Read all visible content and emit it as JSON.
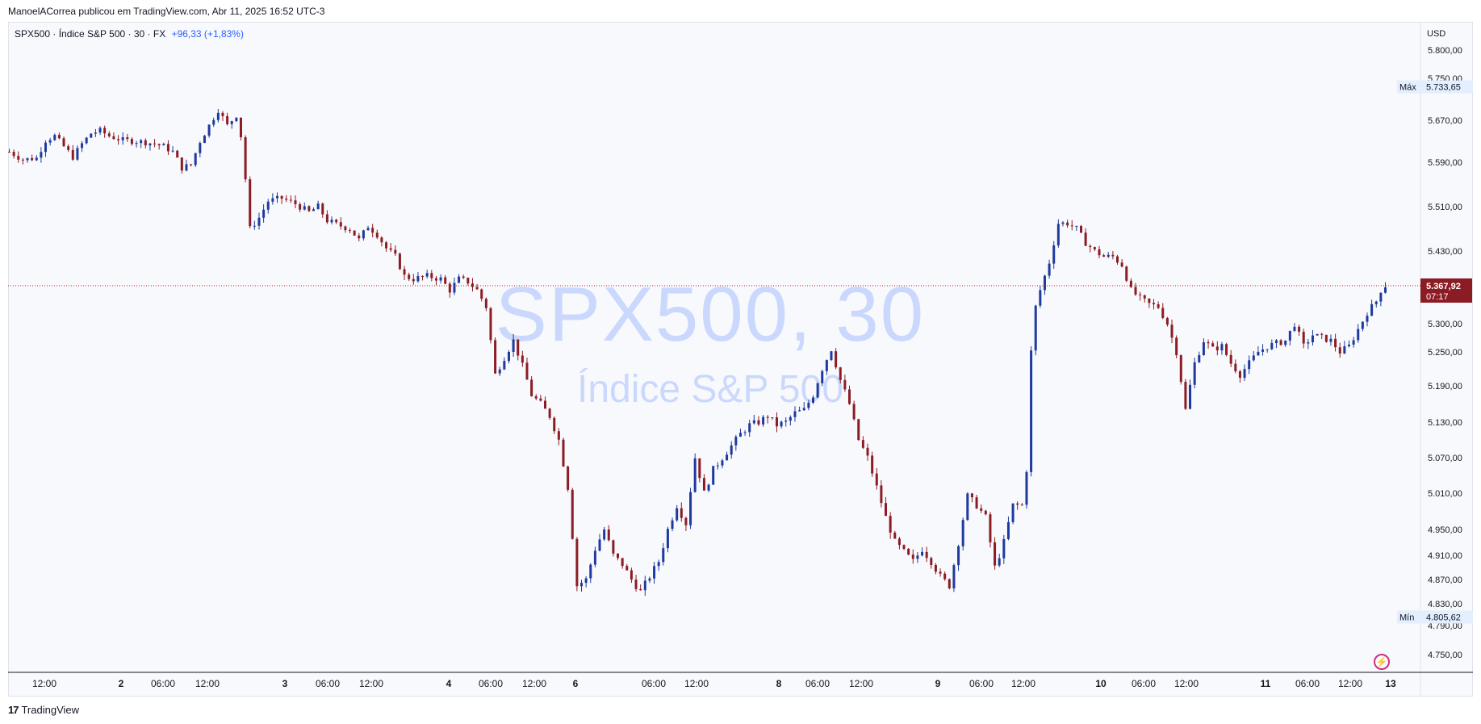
{
  "header": {
    "publisher_line": "ManoelACorrea publicou em TradingView.com, Abr 11, 2025 16:52 UTC-3"
  },
  "legend": {
    "symbol_line": "SPX500 · Índice S&P 500 · 30 · FX",
    "change": "+96,33 (+1,83%)"
  },
  "watermark": {
    "main": "SPX500, 30",
    "sub": "Índice S&P 500"
  },
  "footer": {
    "brand": "TradingView",
    "logo_text": "17"
  },
  "currency_label": "USD",
  "icons": {
    "alert": "lightning-icon"
  },
  "colors": {
    "up": "#1e3a9e",
    "down": "#8c1c24",
    "price_line": "#b71c1c",
    "max_min_bg": "#e3eefe"
  },
  "chart_data": {
    "type": "candlestick",
    "timeframe": "30",
    "y_ticks": [
      "5.800,00",
      "5.750,00",
      "5.670,00",
      "5.590,00",
      "5.510,00",
      "5.430,00",
      "5.300,00",
      "5.250,00",
      "5.190,00",
      "5.130,00",
      "5.070,00",
      "5.010,00",
      "4.950,00",
      "4.910,00",
      "4.870,00",
      "4.830,00",
      "4.790,00",
      "4.750,00"
    ],
    "x_ticks": [
      "12:00",
      "2",
      "06:00",
      "12:00",
      "3",
      "06:00",
      "12:00",
      "4",
      "06:00",
      "12:00",
      "6",
      "06:00",
      "12:00",
      "8",
      "06:00",
      "12:00",
      "9",
      "06:00",
      "12:00",
      "10",
      "06:00",
      "12:00",
      "11",
      "06:00",
      "12:00",
      "13"
    ],
    "max": {
      "label": "Máx",
      "value": "5.733,65"
    },
    "min": {
      "label": "Mín",
      "value": "4.805,62"
    },
    "last_price": {
      "value": "5.367,92",
      "countdown": "07:17"
    },
    "price_path": [
      [
        0,
        5610
      ],
      [
        3,
        5595
      ],
      [
        6,
        5598
      ],
      [
        8,
        5632
      ],
      [
        10,
        5640
      ],
      [
        12,
        5620
      ],
      [
        14,
        5600
      ],
      [
        16,
        5625
      ],
      [
        18,
        5645
      ],
      [
        20,
        5650
      ],
      [
        22,
        5640
      ],
      [
        25,
        5632
      ],
      [
        28,
        5630
      ],
      [
        30,
        5628
      ],
      [
        32,
        5625
      ],
      [
        34,
        5620
      ],
      [
        36,
        5610
      ],
      [
        38,
        5580
      ],
      [
        40,
        5585
      ],
      [
        42,
        5630
      ],
      [
        44,
        5660
      ],
      [
        46,
        5690
      ],
      [
        48,
        5660
      ],
      [
        50,
        5680
      ],
      [
        51,
        5640
      ],
      [
        52,
        5560
      ],
      [
        53,
        5470
      ],
      [
        55,
        5490
      ],
      [
        57,
        5520
      ],
      [
        60,
        5525
      ],
      [
        63,
        5515
      ],
      [
        66,
        5500
      ],
      [
        68,
        5510
      ],
      [
        70,
        5485
      ],
      [
        72,
        5478
      ],
      [
        75,
        5470
      ],
      [
        77,
        5450
      ],
      [
        79,
        5475
      ],
      [
        81,
        5460
      ],
      [
        83,
        5435
      ],
      [
        85,
        5420
      ],
      [
        87,
        5385
      ],
      [
        89,
        5380
      ],
      [
        92,
        5385
      ],
      [
        95,
        5380
      ],
      [
        97,
        5360
      ],
      [
        99,
        5380
      ],
      [
        101,
        5375
      ],
      [
        103,
        5360
      ],
      [
        105,
        5330
      ],
      [
        107,
        5210
      ],
      [
        109,
        5240
      ],
      [
        111,
        5270
      ],
      [
        113,
        5225
      ],
      [
        115,
        5175
      ],
      [
        117,
        5160
      ],
      [
        119,
        5140
      ],
      [
        121,
        5100
      ],
      [
        123,
        5020
      ],
      [
        125,
        4860
      ],
      [
        127,
        4870
      ],
      [
        129,
        4920
      ],
      [
        131,
        4950
      ],
      [
        133,
        4910
      ],
      [
        135,
        4895
      ],
      [
        137,
        4870
      ],
      [
        139,
        4850
      ],
      [
        141,
        4875
      ],
      [
        143,
        4900
      ],
      [
        145,
        4950
      ],
      [
        147,
        4990
      ],
      [
        149,
        4960
      ],
      [
        151,
        5070
      ],
      [
        153,
        5010
      ],
      [
        155,
        5050
      ],
      [
        157,
        5070
      ],
      [
        159,
        5090
      ],
      [
        161,
        5110
      ],
      [
        163,
        5125
      ],
      [
        165,
        5130
      ],
      [
        167,
        5140
      ],
      [
        169,
        5125
      ],
      [
        171,
        5130
      ],
      [
        173,
        5145
      ],
      [
        175,
        5150
      ],
      [
        177,
        5175
      ],
      [
        179,
        5220
      ],
      [
        181,
        5255
      ],
      [
        183,
        5200
      ],
      [
        185,
        5160
      ],
      [
        187,
        5100
      ],
      [
        189,
        5070
      ],
      [
        191,
        5020
      ],
      [
        193,
        4970
      ],
      [
        195,
        4930
      ],
      [
        197,
        4915
      ],
      [
        199,
        4900
      ],
      [
        201,
        4920
      ],
      [
        203,
        4900
      ],
      [
        205,
        4875
      ],
      [
        207,
        4860
      ],
      [
        209,
        4930
      ],
      [
        211,
        5005
      ],
      [
        213,
        4990
      ],
      [
        215,
        4970
      ],
      [
        217,
        4890
      ],
      [
        219,
        4930
      ],
      [
        221,
        4990
      ],
      [
        223,
        4990
      ],
      [
        224,
        5050
      ],
      [
        225,
        5250
      ],
      [
        226,
        5330
      ],
      [
        227,
        5360
      ],
      [
        229,
        5410
      ],
      [
        231,
        5480
      ],
      [
        233,
        5480
      ],
      [
        235,
        5470
      ],
      [
        237,
        5445
      ],
      [
        239,
        5430
      ],
      [
        241,
        5420
      ],
      [
        243,
        5420
      ],
      [
        245,
        5405
      ],
      [
        247,
        5360
      ],
      [
        249,
        5345
      ],
      [
        251,
        5335
      ],
      [
        253,
        5330
      ],
      [
        255,
        5300
      ],
      [
        257,
        5250
      ],
      [
        259,
        5150
      ],
      [
        261,
        5230
      ],
      [
        263,
        5270
      ],
      [
        265,
        5255
      ],
      [
        267,
        5260
      ],
      [
        269,
        5230
      ],
      [
        271,
        5210
      ],
      [
        273,
        5230
      ],
      [
        275,
        5250
      ],
      [
        277,
        5260
      ],
      [
        279,
        5265
      ],
      [
        281,
        5270
      ],
      [
        283,
        5300
      ],
      [
        285,
        5260
      ],
      [
        287,
        5280
      ],
      [
        289,
        5275
      ],
      [
        291,
        5270
      ],
      [
        293,
        5250
      ],
      [
        295,
        5260
      ],
      [
        297,
        5290
      ],
      [
        299,
        5320
      ],
      [
        301,
        5340
      ],
      [
        302,
        5360
      ],
      [
        303,
        5368
      ]
    ]
  }
}
